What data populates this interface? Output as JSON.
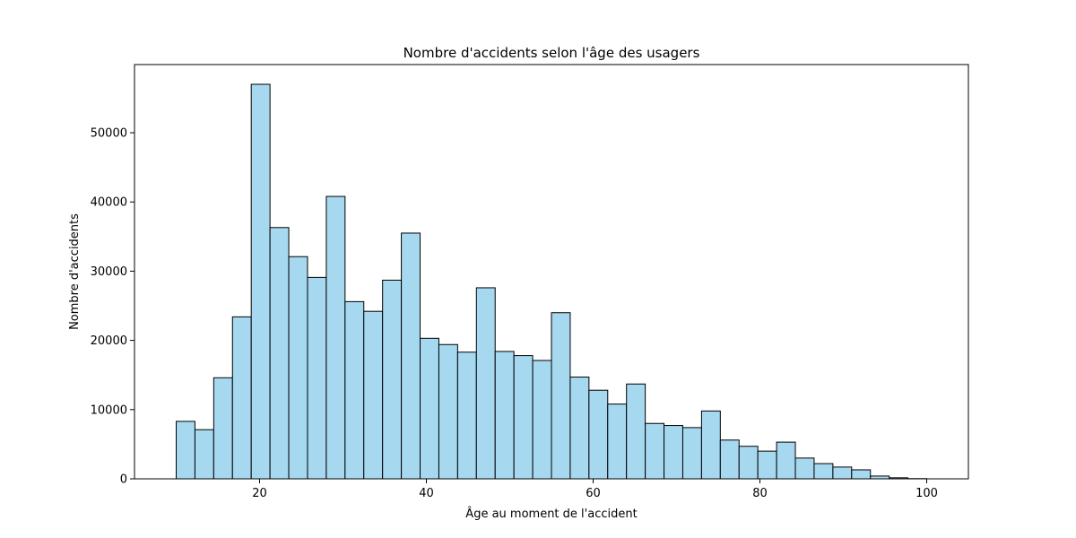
{
  "colors": {
    "bar_fill": "#a6d8f0",
    "bar_edge": "#000000",
    "axis": "#000000",
    "background": "#ffffff"
  },
  "chart_data": {
    "type": "bar",
    "subtype": "histogram",
    "title": "Nombre d'accidents selon l'âge des usagers",
    "xlabel": "Âge au moment de l'accident",
    "ylabel": "Nombre d'accidents",
    "xlim": [
      5,
      105
    ],
    "ylim": [
      0,
      59850
    ],
    "xticks": [
      20,
      40,
      60,
      80,
      100
    ],
    "yticks": [
      0,
      10000,
      20000,
      30000,
      40000,
      50000
    ],
    "bin_start": 10,
    "bin_width": 2.25,
    "values": [
      8300,
      7100,
      14600,
      23400,
      57000,
      36300,
      32100,
      29100,
      40800,
      25600,
      24200,
      28700,
      35500,
      20300,
      19400,
      18300,
      27600,
      18400,
      17800,
      17100,
      24000,
      14700,
      12800,
      10800,
      13700,
      8000,
      7700,
      7400,
      9800,
      5600,
      4700,
      4000,
      5300,
      3000,
      2200,
      1700,
      1300,
      400,
      150,
      30
    ],
    "grid": false,
    "legend": "none"
  }
}
